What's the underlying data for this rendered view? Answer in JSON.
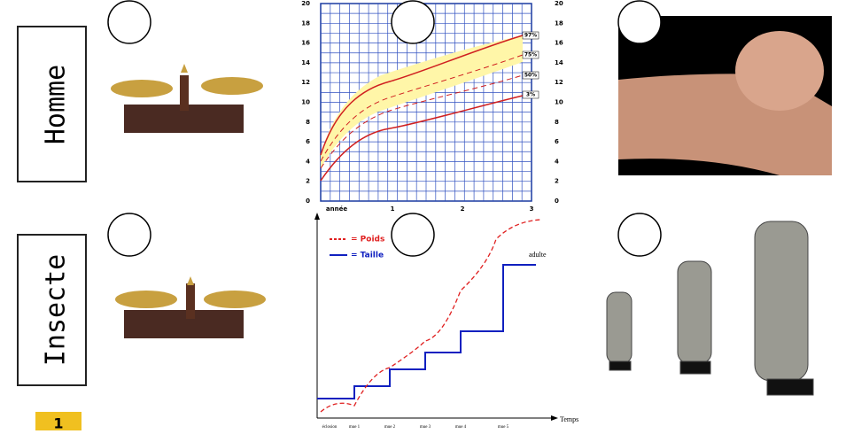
{
  "labels": {
    "homme": "Homme",
    "insecte": "Insecte"
  },
  "growth_chart": {
    "left_ticks": [
      "20",
      "18",
      "16",
      "14",
      "12",
      "10",
      "8",
      "6",
      "4",
      "2",
      "0"
    ],
    "right_ticks": [
      "20",
      "18",
      "16",
      "14",
      "12",
      "10",
      "8",
      "6",
      "4",
      "2",
      "0"
    ],
    "x_labels": [
      "année",
      "1",
      "2",
      "3"
    ],
    "percentiles": [
      "97%",
      "75%",
      "50%",
      "3%"
    ]
  },
  "insect_chart": {
    "legend": [
      "= Poids",
      "= Taille"
    ],
    "stage": "adulte",
    "axis": "Temps",
    "x_labels": [
      "éclosion",
      "mue 1",
      "mue 2",
      "mue 3",
      "mue 4",
      "mue 5"
    ]
  },
  "footer": {
    "step": "1"
  }
}
